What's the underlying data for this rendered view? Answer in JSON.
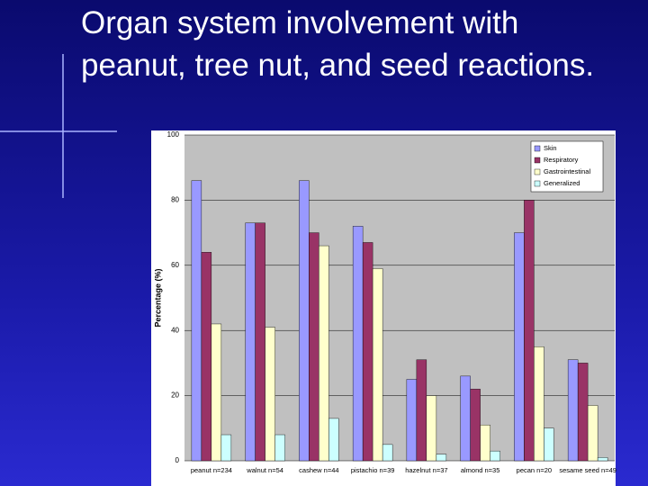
{
  "slide_title": "Organ system involvement with peanut, tree nut, and seed reactions.",
  "chart_data": {
    "type": "bar",
    "y_label": "Percentage (%)",
    "categories": [
      "peanut n=234",
      "walnut n=54",
      "cashew n=44",
      "pistachio n=39",
      "hazelnut n=37",
      "almond n=35",
      "pecan n=20",
      "sesame seed n=49"
    ],
    "series": [
      {
        "name": "Skin",
        "color": "#9999ff",
        "values": [
          86,
          73,
          86,
          72,
          25,
          26,
          70,
          31
        ]
      },
      {
        "name": "Respiratory",
        "color": "#993366",
        "values": [
          64,
          73,
          70,
          67,
          31,
          22,
          80,
          30
        ]
      },
      {
        "name": "Gastrointestinal",
        "color": "#ffffcc",
        "values": [
          42,
          41,
          66,
          59,
          20,
          11,
          35,
          17
        ]
      },
      {
        "name": "Generalized",
        "color": "#ccffff",
        "values": [
          8,
          8,
          13,
          5,
          2,
          3,
          10,
          1
        ]
      }
    ],
    "ylim": [
      0,
      100
    ],
    "yticks": [
      0,
      20,
      40,
      60,
      80,
      100
    ],
    "grid": true,
    "legend": "top-right"
  }
}
